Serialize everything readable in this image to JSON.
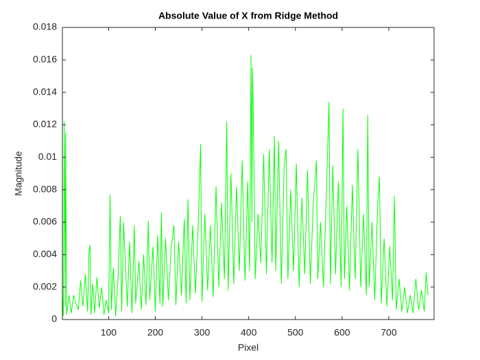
{
  "chart_data": {
    "type": "line",
    "title": "Absolute Value of X from Ridge Method",
    "xlabel": "Pixel",
    "ylabel": "Magnitude",
    "xlim": [
      1,
      797
    ],
    "xticks": [
      100,
      200,
      300,
      400,
      500,
      600,
      700
    ],
    "ylim": [
      0,
      0.018
    ],
    "yticks": [
      0,
      0.002,
      0.004,
      0.006,
      0.008,
      0.01,
      0.012,
      0.014,
      0.016,
      0.018
    ],
    "grid": false,
    "x": [
      1,
      3,
      5,
      7,
      8,
      10,
      15,
      20,
      25,
      30,
      35,
      40,
      45,
      50,
      55,
      58,
      60,
      62,
      66,
      70,
      75,
      80,
      85,
      90,
      95,
      100,
      103,
      106,
      110,
      115,
      120,
      125,
      128,
      132,
      140,
      145,
      150,
      155,
      158,
      165,
      170,
      175,
      180,
      185,
      188,
      195,
      200,
      205,
      210,
      213,
      216,
      222,
      228,
      234,
      240,
      244,
      250,
      256,
      262,
      266,
      270,
      274,
      280,
      286,
      292,
      297,
      300,
      306,
      312,
      318,
      324,
      330,
      336,
      342,
      348,
      353,
      356,
      362,
      368,
      374,
      380,
      386,
      392,
      398,
      402,
      405,
      407,
      408,
      410,
      414,
      420,
      426,
      432,
      438,
      444,
      450,
      455,
      458,
      464,
      470,
      476,
      480,
      484,
      490,
      496,
      502,
      508,
      514,
      520,
      526,
      532,
      538,
      545,
      548,
      554,
      560,
      566,
      572,
      575,
      580,
      586,
      592,
      598,
      602,
      605,
      610,
      616,
      622,
      628,
      634,
      640,
      646,
      652,
      655,
      658,
      664,
      670,
      676,
      680,
      684,
      690,
      696,
      702,
      708,
      712,
      716,
      722,
      728,
      734,
      740,
      746,
      752,
      758,
      764,
      770,
      776,
      780,
      784
    ],
    "series": [
      {
        "name": "Magnitude",
        "color": "#00ff00",
        "values": [
          0.0015,
          0.0002,
          0.0122,
          0.0008,
          0.0115,
          0.0003,
          0.0015,
          0.0004,
          0.0015,
          0.001,
          0.0006,
          0.0024,
          0.0008,
          0.0028,
          0.0005,
          0.0042,
          0.0046,
          0.0003,
          0.0022,
          0.0004,
          0.0026,
          0.0007,
          0.002,
          0.0003,
          0.0012,
          0.0004,
          0.0077,
          0.0006,
          0.0032,
          0.0002,
          0.0025,
          0.0064,
          0.0005,
          0.006,
          0.0008,
          0.0048,
          0.0004,
          0.0058,
          0.001,
          0.0036,
          0.0006,
          0.004,
          0.0009,
          0.0061,
          0.0012,
          0.0045,
          0.0005,
          0.0052,
          0.001,
          0.0066,
          0.0008,
          0.005,
          0.0012,
          0.0044,
          0.0058,
          0.0009,
          0.0048,
          0.0015,
          0.0062,
          0.001,
          0.0074,
          0.0012,
          0.0058,
          0.0016,
          0.006,
          0.0108,
          0.0011,
          0.0065,
          0.0018,
          0.0058,
          0.0014,
          0.0082,
          0.002,
          0.0072,
          0.0025,
          0.0122,
          0.0018,
          0.009,
          0.0022,
          0.0082,
          0.003,
          0.0098,
          0.0024,
          0.0085,
          0.003,
          0.0163,
          0.006,
          0.0155,
          0.0124,
          0.0025,
          0.0065,
          0.0035,
          0.0102,
          0.0028,
          0.0105,
          0.0035,
          0.0113,
          0.003,
          0.011,
          0.0022,
          0.0095,
          0.0105,
          0.0025,
          0.008,
          0.003,
          0.0096,
          0.002,
          0.0075,
          0.0028,
          0.0092,
          0.0022,
          0.007,
          0.0098,
          0.0025,
          0.006,
          0.002,
          0.0075,
          0.0134,
          0.0022,
          0.0095,
          0.0028,
          0.0085,
          0.002,
          0.013,
          0.0025,
          0.007,
          0.0018,
          0.0083,
          0.0025,
          0.0105,
          0.002,
          0.0065,
          0.0015,
          0.0126,
          0.002,
          0.006,
          0.0012,
          0.007,
          0.0088,
          0.001,
          0.005,
          0.0008,
          0.0045,
          0.0012,
          0.0076,
          0.0006,
          0.0025,
          0.0005,
          0.002,
          0.0004,
          0.0015,
          0.0004,
          0.0025,
          0.0006,
          0.0018,
          0.0005,
          0.0029,
          0.0015
        ]
      }
    ]
  }
}
